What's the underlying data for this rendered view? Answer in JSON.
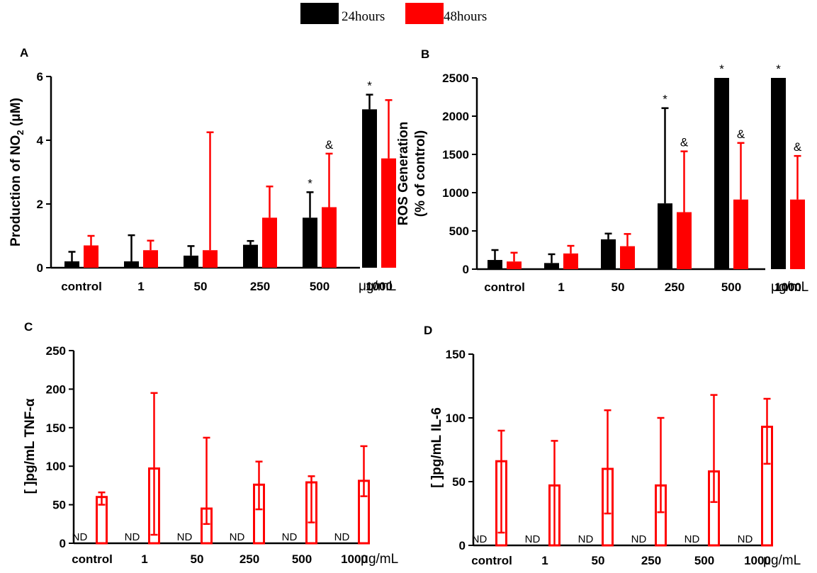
{
  "legend": {
    "items": [
      {
        "label": "24hours",
        "color": "#000000"
      },
      {
        "label": "48hours",
        "color": "#ff0000"
      }
    ]
  },
  "chart_data": [
    {
      "panel": "A",
      "type": "bar",
      "ylabel_parts": [
        "Production of NO",
        "2",
        " (μM)"
      ],
      "unit": "μg/mL",
      "categories": [
        "control",
        "1",
        "50",
        "250",
        "500",
        "1000"
      ],
      "ylim": [
        0,
        6
      ],
      "yticks": [
        0,
        2,
        4,
        6
      ],
      "series": [
        {
          "name": "24hours",
          "color": "#000000",
          "filled": true,
          "values": [
            0.2,
            0.2,
            0.38,
            0.72,
            1.57,
            4.97
          ],
          "err_up": [
            0.3,
            0.82,
            0.3,
            0.12,
            0.8,
            0.46
          ]
        },
        {
          "name": "48hours",
          "color": "#ff0000",
          "filled": true,
          "values": [
            0.7,
            0.55,
            0.55,
            1.57,
            1.9,
            3.43
          ],
          "err_up": [
            0.3,
            0.3,
            3.7,
            0.98,
            1.68,
            1.83
          ]
        }
      ],
      "annotations": [
        {
          "series": 0,
          "category": 4,
          "text": "*"
        },
        {
          "series": 1,
          "category": 4,
          "text": "&"
        },
        {
          "series": 0,
          "category": 5,
          "text": "*"
        }
      ]
    },
    {
      "panel": "B",
      "type": "bar",
      "ylabel_parts": [
        "ROS Generation",
        "(% of control)"
      ],
      "unit": "μg/mL",
      "categories": [
        "control",
        "1",
        "50",
        "250",
        "500",
        "1000"
      ],
      "ylim": [
        0,
        2500
      ],
      "yticks": [
        0,
        500,
        1000,
        1500,
        2000,
        2500
      ],
      "series": [
        {
          "name": "24hours",
          "color": "#000000",
          "filled": true,
          "values": [
            120,
            80,
            390,
            860,
            2500,
            2500
          ],
          "err_up": [
            130,
            115,
            75,
            1245,
            0,
            0
          ]
        },
        {
          "name": "48hours",
          "color": "#ff0000",
          "filled": true,
          "values": [
            100,
            205,
            300,
            745,
            910,
            910
          ],
          "err_up": [
            115,
            100,
            160,
            795,
            740,
            570
          ]
        }
      ],
      "annotations": [
        {
          "series": 0,
          "category": 3,
          "text": "*"
        },
        {
          "series": 1,
          "category": 3,
          "text": "&"
        },
        {
          "series": 0,
          "category": 4,
          "text": "*"
        },
        {
          "series": 1,
          "category": 4,
          "text": "&"
        },
        {
          "series": 0,
          "category": 5,
          "text": "*"
        },
        {
          "series": 1,
          "category": 5,
          "text": "&"
        }
      ]
    },
    {
      "panel": "C",
      "type": "bar",
      "ylabel_parts": [
        "[ ]pg/mL TNF-α"
      ],
      "unit": "μg/mL",
      "categories": [
        "control",
        "1",
        "50",
        "250",
        "500",
        "1000"
      ],
      "ylim": [
        0,
        250
      ],
      "yticks": [
        0,
        50,
        100,
        150,
        200,
        250
      ],
      "nd_label": "ND",
      "series": [
        {
          "name": "24hours",
          "color": "#000000",
          "filled": false,
          "values": [
            null,
            null,
            null,
            null,
            null,
            null
          ],
          "nd": [
            true,
            true,
            true,
            true,
            true,
            true
          ]
        },
        {
          "name": "48hours",
          "color": "#ff0000",
          "filled": false,
          "values": [
            60,
            97,
            45,
            76,
            79,
            81
          ],
          "err_up": [
            6,
            98,
            92,
            30,
            8,
            45
          ],
          "err_down": [
            10,
            86,
            20,
            32,
            52,
            20
          ]
        }
      ]
    },
    {
      "panel": "D",
      "type": "bar",
      "ylabel_parts": [
        "[ ]pg/mL IL-6"
      ],
      "unit": "μg/mL",
      "categories": [
        "control",
        "1",
        "50",
        "250",
        "500",
        "1000"
      ],
      "ylim": [
        0,
        150
      ],
      "yticks": [
        0,
        50,
        100,
        150
      ],
      "nd_label": "ND",
      "series": [
        {
          "name": "24hours",
          "color": "#000000",
          "filled": false,
          "values": [
            null,
            null,
            null,
            null,
            null,
            null
          ],
          "nd": [
            true,
            true,
            true,
            true,
            true,
            true
          ]
        },
        {
          "name": "48hours",
          "color": "#ff0000",
          "filled": false,
          "values": [
            66,
            47,
            60,
            47,
            58,
            93
          ],
          "err_up": [
            24,
            35,
            46,
            53,
            60,
            22
          ],
          "err_down": [
            56,
            47,
            35,
            21,
            24,
            29
          ]
        }
      ]
    }
  ]
}
